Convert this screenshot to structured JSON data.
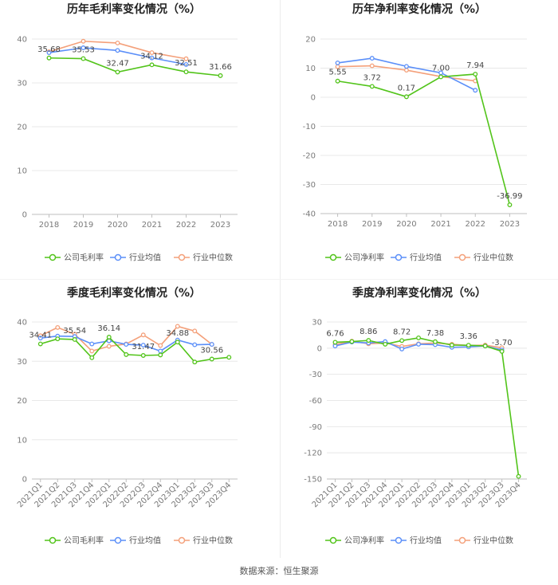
{
  "source": "数据来源：恒生聚源",
  "colors": {
    "company": "#52c41a",
    "avg": "#5b8ff9",
    "median": "#f4a07a",
    "grid": "#e8e8e8",
    "axis": "#bfbfbf"
  },
  "chart_data": [
    {
      "type": "line",
      "title": "历年毛利率变化情况（%）",
      "categories": [
        "2018",
        "2019",
        "2020",
        "2021",
        "2022",
        "2023"
      ],
      "ylim": [
        0,
        40
      ],
      "yticks": [
        0,
        10,
        20,
        30,
        40
      ],
      "legend_position": "bottom",
      "series": [
        {
          "name": "公司毛利率",
          "color": "#52c41a",
          "values": [
            35.68,
            35.53,
            32.47,
            34.12,
            32.51,
            31.66
          ],
          "labels": [
            "35.68",
            "35.53",
            "32.47",
            "34.12",
            "32.51",
            "31.66"
          ]
        },
        {
          "name": "行业均值",
          "color": "#5b8ff9",
          "values": [
            36.9,
            38.0,
            37.4,
            35.7,
            34.2,
            null
          ]
        },
        {
          "name": "行业中位数",
          "color": "#f4a07a",
          "values": [
            37.1,
            39.5,
            39.1,
            36.9,
            35.5,
            null
          ]
        }
      ]
    },
    {
      "type": "line",
      "title": "历年净利率变化情况（%）",
      "categories": [
        "2018",
        "2019",
        "2020",
        "2021",
        "2022",
        "2023"
      ],
      "ylim": [
        -40,
        20
      ],
      "yticks": [
        20,
        10,
        0,
        -10,
        -20,
        -30,
        -40
      ],
      "legend_position": "bottom",
      "series": [
        {
          "name": "公司净利率",
          "color": "#52c41a",
          "values": [
            5.55,
            3.72,
            0.17,
            7.0,
            7.94,
            -36.99
          ],
          "labels": [
            "5.55",
            "3.72",
            "0.17",
            "7.00",
            "7.94",
            "-36.99"
          ]
        },
        {
          "name": "行业均值",
          "color": "#5b8ff9",
          "values": [
            11.8,
            13.4,
            10.6,
            8.4,
            2.4,
            null
          ]
        },
        {
          "name": "行业中位数",
          "color": "#f4a07a",
          "values": [
            10.5,
            10.8,
            9.3,
            7.1,
            5.6,
            null
          ]
        }
      ]
    },
    {
      "type": "line",
      "title": "季度毛利率变化情况（%）",
      "categories": [
        "2021Q1",
        "2021Q2",
        "2021Q3",
        "2021Q4",
        "2022Q1",
        "2022Q2",
        "2022Q3",
        "2022Q4",
        "2023Q1",
        "2023Q2",
        "2023Q3",
        "2023Q4"
      ],
      "ylim": [
        0,
        40
      ],
      "yticks": [
        0,
        10,
        20,
        30,
        40
      ],
      "legend_position": "bottom",
      "series": [
        {
          "name": "公司毛利率",
          "color": "#52c41a",
          "values": [
            34.41,
            35.7,
            35.54,
            30.9,
            36.14,
            31.7,
            31.47,
            31.6,
            34.88,
            29.8,
            30.56,
            31.0
          ],
          "labels": [
            "34.41",
            null,
            "35.54",
            null,
            "36.14",
            null,
            "31.47",
            null,
            "34.88",
            null,
            "30.56",
            null
          ]
        },
        {
          "name": "行业均值",
          "color": "#5b8ff9",
          "values": [
            35.9,
            36.4,
            36.3,
            34.4,
            35.2,
            34.3,
            34.1,
            32.6,
            35.4,
            34.2,
            34.3,
            null
          ]
        },
        {
          "name": "行业中位数",
          "color": "#f4a07a",
          "values": [
            36.5,
            38.6,
            36.9,
            32.6,
            33.8,
            34.4,
            36.7,
            34.0,
            38.9,
            37.7,
            34.3,
            null
          ]
        }
      ]
    },
    {
      "type": "line",
      "title": "季度净利率变化情况（%）",
      "categories": [
        "2021Q1",
        "2021Q2",
        "2021Q3",
        "2021Q4",
        "2022Q1",
        "2022Q2",
        "2022Q3",
        "2022Q4",
        "2023Q1",
        "2023Q2",
        "2023Q3",
        "2023Q4"
      ],
      "ylim": [
        -150,
        30
      ],
      "yticks": [
        30,
        0,
        -30,
        -60,
        -90,
        -120,
        -150
      ],
      "legend_position": "bottom",
      "series": [
        {
          "name": "公司净利率",
          "color": "#52c41a",
          "values": [
            6.76,
            7.6,
            8.86,
            4.5,
            8.72,
            11.8,
            7.38,
            3.5,
            3.36,
            2.5,
            -3.7,
            -147
          ],
          "labels": [
            "6.76",
            null,
            "8.86",
            null,
            "8.72",
            null,
            "7.38",
            null,
            "3.36",
            null,
            "-3.70",
            null
          ]
        },
        {
          "name": "行业均值",
          "color": "#5b8ff9",
          "values": [
            2.5,
            7.0,
            6.0,
            7.5,
            -1.0,
            4.5,
            4.0,
            1.0,
            1.5,
            2.5,
            -2.0,
            null
          ]
        },
        {
          "name": "行业中位数",
          "color": "#f4a07a",
          "values": [
            4.0,
            8.0,
            5.0,
            6.0,
            2.0,
            5.0,
            6.0,
            4.5,
            3.0,
            3.5,
            0.5,
            null
          ]
        }
      ]
    }
  ]
}
